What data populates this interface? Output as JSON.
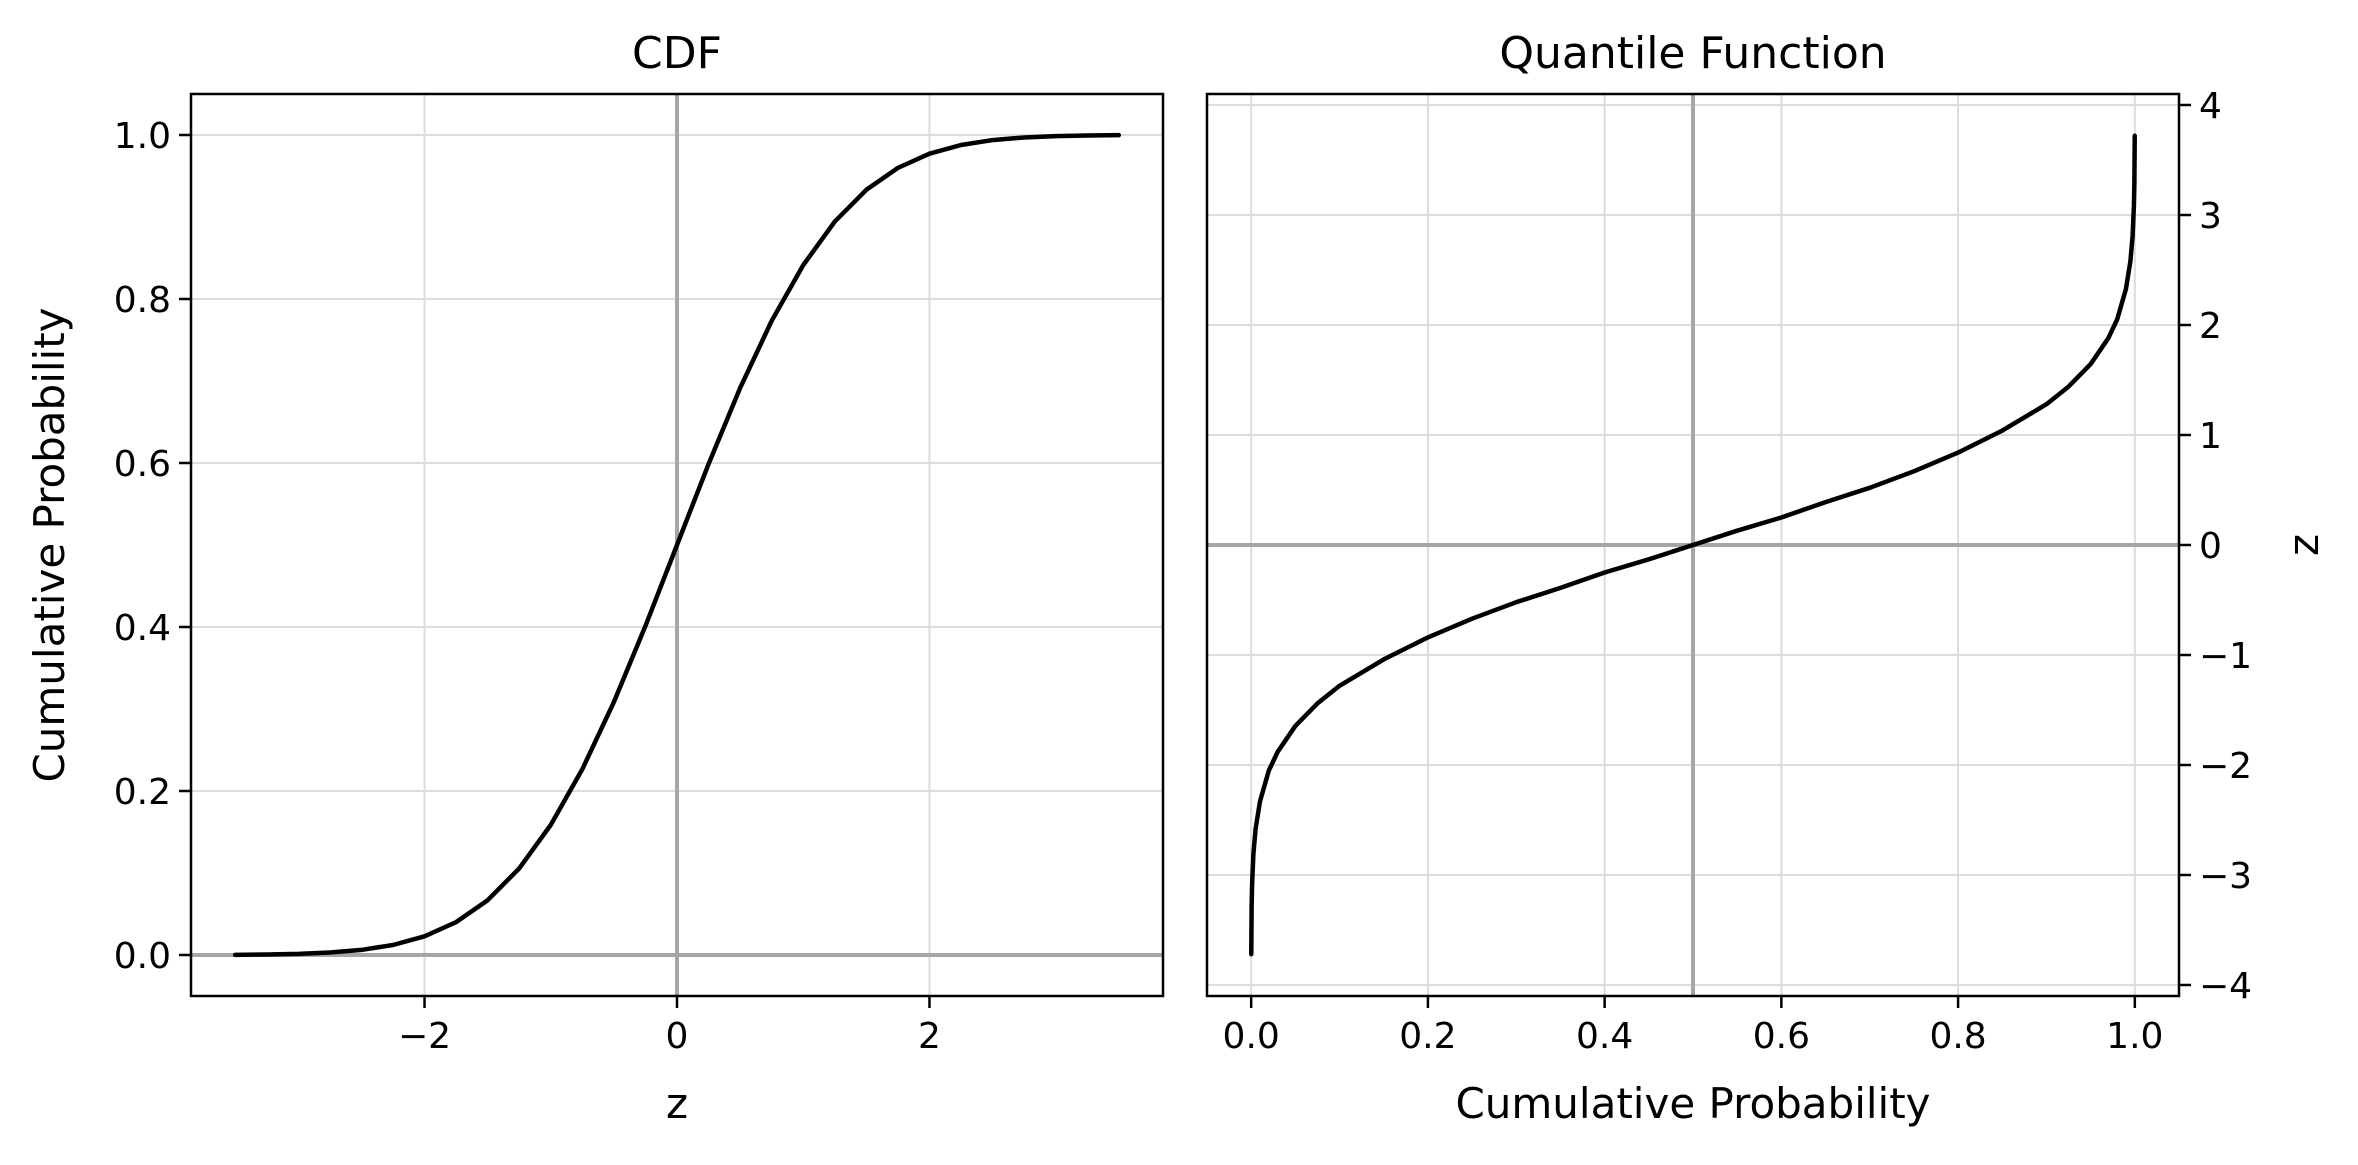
{
  "chart_data": [
    {
      "type": "line",
      "title": "CDF",
      "xlabel": "z",
      "ylabel": "Cumulative Probability",
      "xlim": [
        -3.85,
        3.85
      ],
      "ylim": [
        -0.05,
        1.05
      ],
      "xticks": [
        -2,
        0,
        2
      ],
      "xtick_labels": [
        "−2",
        "0",
        "2"
      ],
      "yticks": [
        0.0,
        0.2,
        0.4,
        0.6,
        0.8,
        1.0
      ],
      "ytick_labels": [
        "0.0",
        "0.2",
        "0.4",
        "0.6",
        "0.8",
        "1.0"
      ],
      "grid": true,
      "reference_lines": {
        "horizontal": [
          0.0
        ],
        "vertical": [
          0
        ]
      },
      "series": [
        {
          "x": [
            -3.5,
            -3.25,
            -3.0,
            -2.75,
            -2.5,
            -2.25,
            -2.0,
            -1.75,
            -1.5,
            -1.25,
            -1.0,
            -0.75,
            -0.5,
            -0.25,
            0.0,
            0.25,
            0.5,
            0.75,
            1.0,
            1.25,
            1.5,
            1.75,
            2.0,
            2.25,
            2.5,
            2.75,
            3.0,
            3.25,
            3.5
          ],
          "y": [
            0.0002,
            0.0006,
            0.0013,
            0.003,
            0.0062,
            0.0122,
            0.0228,
            0.0401,
            0.0668,
            0.1056,
            0.1587,
            0.2266,
            0.3085,
            0.4013,
            0.5,
            0.5987,
            0.6915,
            0.7734,
            0.8413,
            0.8944,
            0.9332,
            0.9599,
            0.9772,
            0.9878,
            0.9938,
            0.997,
            0.9987,
            0.9994,
            0.9998
          ]
        }
      ]
    },
    {
      "type": "line",
      "title": "Quantile Function",
      "xlabel": "Cumulative Probability",
      "ylabel": "z",
      "yaxis_side": "right",
      "xlim": [
        -0.05,
        1.05
      ],
      "ylim": [
        -4.1,
        4.1
      ],
      "xticks": [
        0.0,
        0.2,
        0.4,
        0.6,
        0.8,
        1.0
      ],
      "xtick_labels": [
        "0.0",
        "0.2",
        "0.4",
        "0.6",
        "0.8",
        "1.0"
      ],
      "yticks": [
        -4,
        -3,
        -2,
        -1,
        0,
        1,
        2,
        3,
        4
      ],
      "ytick_labels": [
        "−4",
        "−3",
        "−2",
        "−1",
        "0",
        "1",
        "2",
        "3",
        "4"
      ],
      "grid": true,
      "reference_lines": {
        "horizontal": [
          0
        ],
        "vertical": [
          0.5
        ]
      },
      "series": [
        {
          "x": [
            0.0001,
            0.0005,
            0.001,
            0.0025,
            0.005,
            0.01,
            0.02,
            0.03,
            0.05,
            0.075,
            0.1,
            0.15,
            0.2,
            0.25,
            0.3,
            0.35,
            0.4,
            0.45,
            0.5,
            0.55,
            0.6,
            0.65,
            0.7,
            0.75,
            0.8,
            0.85,
            0.9,
            0.925,
            0.95,
            0.97,
            0.98,
            0.99,
            0.995,
            0.9975,
            0.999,
            0.9995,
            0.9999
          ],
          "y": [
            -3.72,
            -3.29,
            -3.09,
            -2.81,
            -2.58,
            -2.33,
            -2.05,
            -1.88,
            -1.645,
            -1.44,
            -1.28,
            -1.04,
            -0.84,
            -0.67,
            -0.52,
            -0.39,
            -0.25,
            -0.13,
            0.0,
            0.13,
            0.25,
            0.39,
            0.52,
            0.67,
            0.84,
            1.04,
            1.28,
            1.44,
            1.645,
            1.88,
            2.05,
            2.33,
            2.58,
            2.81,
            3.09,
            3.29,
            3.72
          ]
        }
      ]
    }
  ]
}
